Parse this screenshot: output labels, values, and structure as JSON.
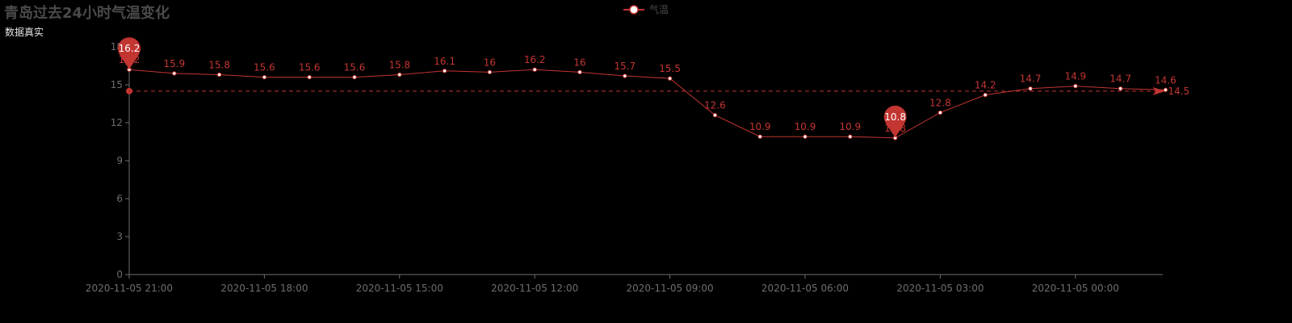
{
  "title": "青岛过去24小时气温变化",
  "subtitle": "数据真实",
  "legend": {
    "series_name": "气温"
  },
  "colors": {
    "series": "#c23531",
    "axis": "#6e6e6e",
    "tick_text": "#6e6e6e",
    "title": "#4a4a4a",
    "background": "#000000"
  },
  "chart_data": {
    "type": "line",
    "title": "青岛过去24小时气温变化",
    "subtitle": "数据真实",
    "y_ticks": [
      0,
      3,
      6,
      9,
      12,
      15,
      18
    ],
    "ylim": [
      0,
      18
    ],
    "x_axis_labels": [
      "2020-11-05 21:00",
      "2020-11-05 18:00",
      "2020-11-05 15:00",
      "2020-11-05 12:00",
      "2020-11-05 09:00",
      "2020-11-05 06:00",
      "2020-11-05 03:00",
      "2020-11-05 00:00"
    ],
    "series": [
      {
        "name": "气温",
        "values": [
          16.2,
          15.9,
          15.8,
          15.6,
          15.6,
          15.6,
          15.8,
          16.1,
          16,
          16.2,
          16,
          15.7,
          15.5,
          12.6,
          10.9,
          10.9,
          10.9,
          10.8,
          12.8,
          14.2,
          14.7,
          14.9,
          14.7,
          14.6
        ]
      }
    ],
    "mark_points": [
      {
        "type": "max",
        "value": 16.2,
        "index": 0
      },
      {
        "type": "min",
        "value": 10.8,
        "index": 17
      }
    ],
    "mark_line": {
      "type": "average",
      "value": 14.5
    },
    "grid": false,
    "legend_position": "top-center"
  }
}
